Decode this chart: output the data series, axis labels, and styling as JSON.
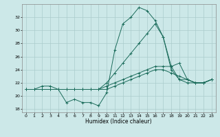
{
  "xlabel": "Humidex (Indice chaleur)",
  "background_color": "#cce8e8",
  "grid_color": "#aacccc",
  "line_color": "#1a6b5a",
  "xlim": [
    -0.5,
    23.5
  ],
  "ylim": [
    17.5,
    34.0
  ],
  "yticks": [
    18,
    20,
    22,
    24,
    26,
    28,
    30,
    32
  ],
  "xticks": [
    0,
    1,
    2,
    3,
    4,
    5,
    6,
    7,
    8,
    9,
    10,
    11,
    12,
    13,
    14,
    15,
    16,
    17,
    18,
    19,
    20,
    21,
    22,
    23
  ],
  "series": [
    {
      "x": [
        0,
        1,
        2,
        3,
        4,
        5,
        6,
        7,
        8,
        9,
        10,
        11,
        12,
        13,
        14,
        15,
        16,
        17,
        18,
        19,
        20,
        21,
        22,
        23
      ],
      "y": [
        21.0,
        21.0,
        21.5,
        21.5,
        21.0,
        19.0,
        19.5,
        19.0,
        19.0,
        18.5,
        20.5,
        27.0,
        31.0,
        32.0,
        33.5,
        33.0,
        31.5,
        29.0,
        24.5,
        22.5,
        22.5,
        22.0,
        22.0,
        22.5
      ]
    },
    {
      "x": [
        0,
        1,
        2,
        3,
        4,
        5,
        6,
        7,
        8,
        9,
        10,
        11,
        12,
        13,
        14,
        15,
        16,
        17,
        18,
        19,
        20,
        21,
        22,
        23
      ],
      "y": [
        21.0,
        21.0,
        21.0,
        21.0,
        21.0,
        21.0,
        21.0,
        21.0,
        21.0,
        21.0,
        22.0,
        23.5,
        25.0,
        26.5,
        28.0,
        29.5,
        31.0,
        29.0,
        24.0,
        22.5,
        22.0,
        22.0,
        22.0,
        22.5
      ]
    },
    {
      "x": [
        0,
        1,
        2,
        3,
        4,
        5,
        6,
        7,
        8,
        9,
        10,
        11,
        12,
        13,
        14,
        15,
        16,
        17,
        18,
        19,
        20,
        21,
        22,
        23
      ],
      "y": [
        21.0,
        21.0,
        21.0,
        21.0,
        21.0,
        21.0,
        21.0,
        21.0,
        21.0,
        21.0,
        21.5,
        22.0,
        22.5,
        23.0,
        23.5,
        24.0,
        24.5,
        24.5,
        24.5,
        25.0,
        22.5,
        22.0,
        22.0,
        22.5
      ]
    },
    {
      "x": [
        0,
        1,
        2,
        3,
        4,
        5,
        6,
        7,
        8,
        9,
        10,
        11,
        12,
        13,
        14,
        15,
        16,
        17,
        18,
        19,
        20,
        21,
        22,
        23
      ],
      "y": [
        21.0,
        21.0,
        21.0,
        21.0,
        21.0,
        21.0,
        21.0,
        21.0,
        21.0,
        21.0,
        21.0,
        21.5,
        22.0,
        22.5,
        23.0,
        23.5,
        24.0,
        24.0,
        23.5,
        23.0,
        22.5,
        22.0,
        22.0,
        22.5
      ]
    }
  ]
}
